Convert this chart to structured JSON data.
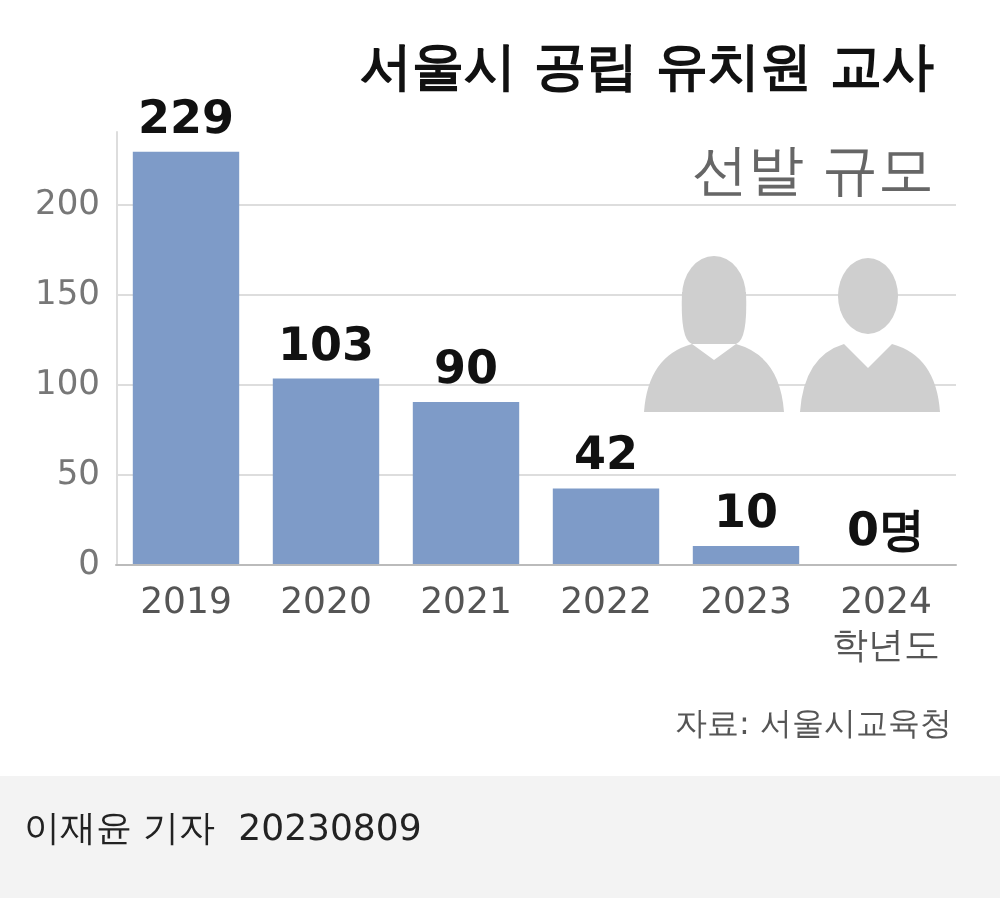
{
  "chart_data": {
    "type": "bar",
    "title": "서울시 공립 유치원 교사",
    "subtitle": "선발 규모",
    "categories": [
      "2019",
      "2020",
      "2021",
      "2022",
      "2023",
      "2024\n학년도"
    ],
    "values": [
      229,
      103,
      90,
      42,
      10,
      0
    ],
    "value_labels": [
      "229",
      "103",
      "90",
      "42",
      "10",
      "0명"
    ],
    "color": "#7e9bc8",
    "ylim": [
      0,
      240
    ],
    "yticks": [
      0,
      50,
      100,
      150,
      200
    ],
    "grid": "y",
    "annotations": [
      "자료: 서울시교육청",
      "이재윤 기자  20230809"
    ]
  }
}
